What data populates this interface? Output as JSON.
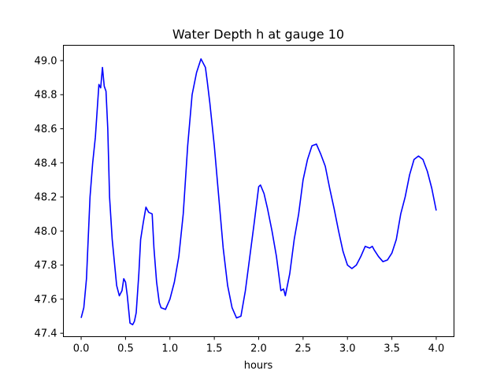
{
  "chart_data": {
    "type": "line",
    "title": "Water Depth h at gauge 10",
    "xlabel": "hours",
    "ylabel": "",
    "xlim": [
      -0.2,
      4.2
    ],
    "ylim": [
      47.38,
      49.09
    ],
    "xticks": [
      0.0,
      0.5,
      1.0,
      1.5,
      2.0,
      2.5,
      3.0,
      3.5,
      4.0
    ],
    "xtick_labels": [
      "0.0",
      "0.5",
      "1.0",
      "1.5",
      "2.0",
      "2.5",
      "3.0",
      "3.5",
      "4.0"
    ],
    "yticks": [
      47.4,
      47.6,
      47.8,
      48.0,
      48.2,
      48.4,
      48.6,
      48.8,
      49.0
    ],
    "ytick_labels": [
      "47.4",
      "47.6",
      "47.8",
      "48.0",
      "48.2",
      "48.4",
      "48.6",
      "48.8",
      "49.0"
    ],
    "grid": false,
    "series": [
      {
        "color": "#0000ff",
        "x": [
          0.0,
          0.03,
          0.06,
          0.1,
          0.13,
          0.16,
          0.2,
          0.22,
          0.24,
          0.26,
          0.28,
          0.3,
          0.32,
          0.35,
          0.4,
          0.43,
          0.46,
          0.48,
          0.5,
          0.52,
          0.55,
          0.58,
          0.6,
          0.62,
          0.65,
          0.67,
          0.7,
          0.73,
          0.76,
          0.8,
          0.82,
          0.85,
          0.88,
          0.9,
          0.95,
          1.0,
          1.05,
          1.1,
          1.15,
          1.2,
          1.25,
          1.3,
          1.35,
          1.4,
          1.42,
          1.45,
          1.5,
          1.55,
          1.6,
          1.65,
          1.7,
          1.75,
          1.8,
          1.85,
          1.9,
          1.95,
          2.0,
          2.02,
          2.06,
          2.1,
          2.15,
          2.2,
          2.25,
          2.28,
          2.3,
          2.35,
          2.4,
          2.45,
          2.5,
          2.55,
          2.6,
          2.65,
          2.7,
          2.75,
          2.8,
          2.85,
          2.9,
          2.95,
          3.0,
          3.05,
          3.1,
          3.15,
          3.2,
          3.25,
          3.28,
          3.3,
          3.35,
          3.4,
          3.45,
          3.5,
          3.55,
          3.6,
          3.65,
          3.7,
          3.75,
          3.8,
          3.85,
          3.9,
          3.95,
          4.0
        ],
        "values": [
          47.49,
          47.55,
          47.72,
          48.2,
          48.4,
          48.55,
          48.86,
          48.84,
          48.96,
          48.85,
          48.82,
          48.6,
          48.2,
          47.95,
          47.68,
          47.62,
          47.65,
          47.72,
          47.7,
          47.62,
          47.46,
          47.45,
          47.47,
          47.52,
          47.75,
          47.95,
          48.05,
          48.14,
          48.11,
          48.1,
          47.9,
          47.7,
          47.58,
          47.55,
          47.54,
          47.6,
          47.7,
          47.85,
          48.1,
          48.5,
          48.8,
          48.93,
          49.01,
          48.96,
          48.88,
          48.75,
          48.5,
          48.2,
          47.9,
          47.68,
          47.55,
          47.49,
          47.5,
          47.65,
          47.85,
          48.05,
          48.26,
          48.27,
          48.22,
          48.13,
          48.0,
          47.85,
          47.65,
          47.66,
          47.62,
          47.75,
          47.95,
          48.1,
          48.3,
          48.42,
          48.5,
          48.51,
          48.45,
          48.38,
          48.25,
          48.13,
          48.0,
          47.88,
          47.8,
          47.78,
          47.8,
          47.85,
          47.91,
          47.9,
          47.91,
          47.89,
          47.85,
          47.82,
          47.83,
          47.87,
          47.95,
          48.1,
          48.2,
          48.33,
          48.42,
          48.44,
          48.42,
          48.35,
          48.25,
          48.12
        ]
      }
    ]
  }
}
